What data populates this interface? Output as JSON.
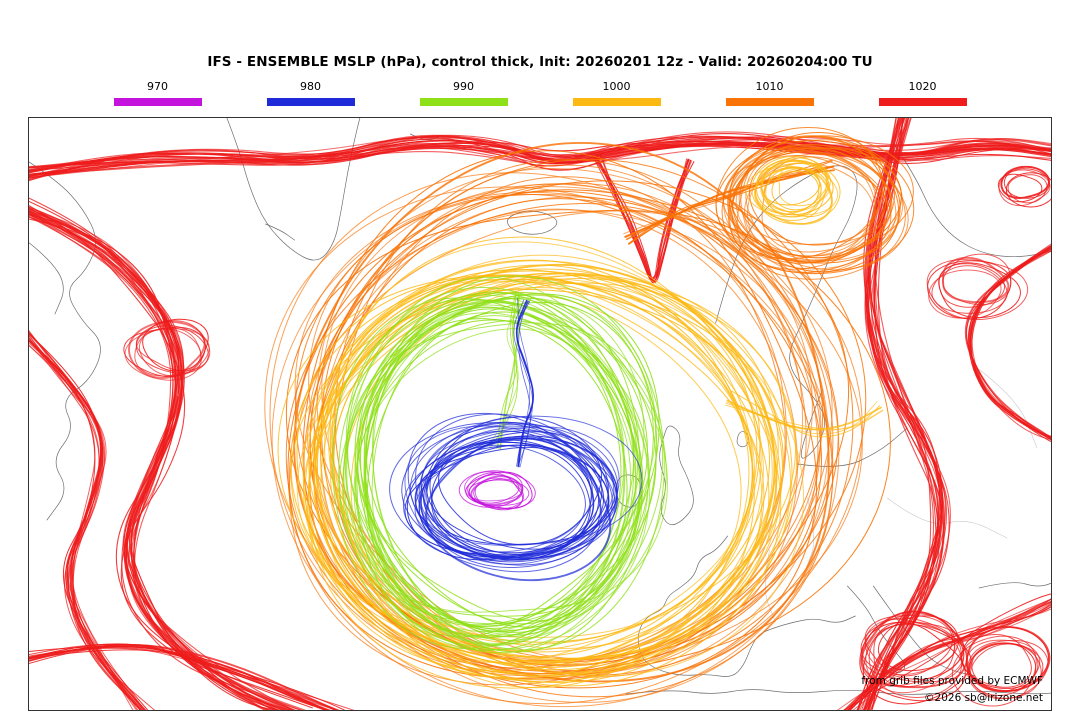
{
  "header": {
    "title": "IFS - ENSEMBLE MSLP (hPa), control thick, Init: 20260201 12z - Valid: 20260204:00 TU"
  },
  "legend": {
    "items": [
      {
        "label": "970",
        "color": "#c413dc"
      },
      {
        "label": "980",
        "color": "#1f2bd8"
      },
      {
        "label": "990",
        "color": "#8fe018"
      },
      {
        "label": "1000",
        "color": "#fdb913"
      },
      {
        "label": "1010",
        "color": "#f97306"
      },
      {
        "label": "1020",
        "color": "#ee1c1c"
      }
    ]
  },
  "credits": {
    "line1": "from grib files provided by ECMWF",
    "line2": "©2026 sb@irizone.net"
  },
  "chart_data": {
    "type": "contour-ensemble-map",
    "title": "IFS - ENSEMBLE MSLP (hPa), control thick, Init: 20260201 12z - Valid: 20260204:00 TU",
    "model": "IFS ENSEMBLE",
    "variable": "MSLP",
    "unit": "hPa",
    "init": "20260201 12z",
    "valid": "20260204:00 TU",
    "region": "North Atlantic / Europe",
    "contour_levels_hPa": [
      970,
      980,
      990,
      1000,
      1010,
      1020
    ],
    "level_colors": [
      "#c413dc",
      "#1f2bd8",
      "#8fe018",
      "#fdb913",
      "#f97306",
      "#ee1c1c"
    ],
    "legend_position": "top",
    "grid": false,
    "features": [
      {
        "name": "deep-atlantic-low",
        "description": "Tight ensemble low west of the British Isles with closed contours down to 970 hPa",
        "approx_center_frac": {
          "x": 0.46,
          "y": 0.63
        }
      },
      {
        "name": "secondary-low-norwegian-sea",
        "description": "Small closed 1000-1010 hPa feature near the Arctic north of Scandinavia",
        "approx_center_frac": {
          "x": 0.76,
          "y": 0.14
        }
      },
      {
        "name": "1020-ridge-west-atlantic",
        "description": "Dense 1020 hPa bundle along the western and northern map edges"
      },
      {
        "name": "1020-ridge-southeast-europe",
        "description": "Dense 1020 hPa bundle over Italy, the Balkans and eastern Europe"
      }
    ]
  }
}
